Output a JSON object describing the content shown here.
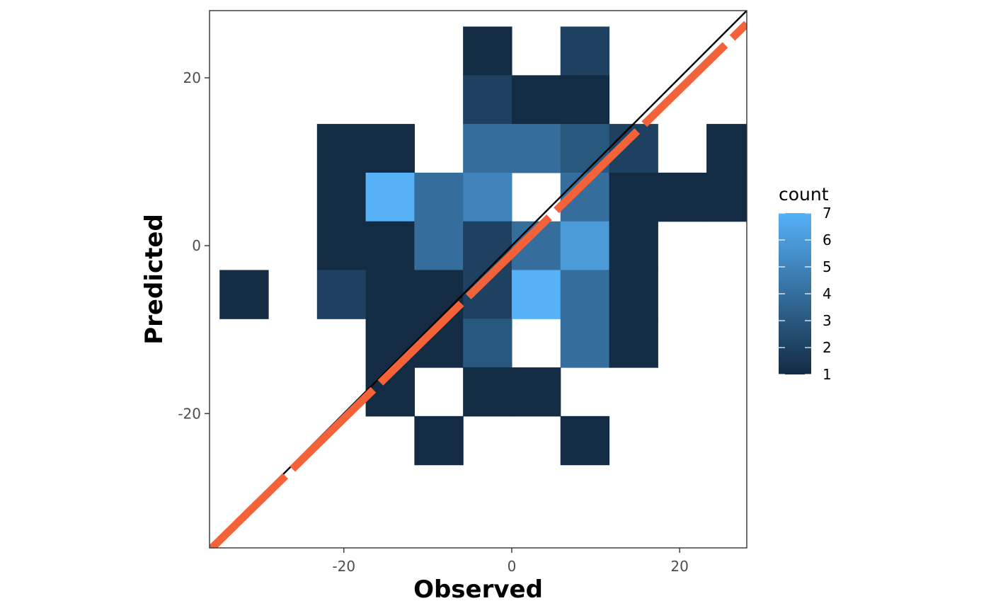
{
  "chart_data": {
    "type": "heatmap",
    "title": "",
    "xlabel": "Observed",
    "ylabel": "Predicted",
    "xlim": [
      -36,
      28
    ],
    "ylim": [
      -36,
      28
    ],
    "bin_width": 5.8,
    "x_ticks": [
      -20,
      0,
      20
    ],
    "x_tick_labels": [
      "-20",
      "0",
      "20"
    ],
    "y_ticks": [
      -20,
      0,
      20
    ],
    "y_tick_labels": [
      "-20",
      "0",
      "20"
    ],
    "grid": false,
    "legend": {
      "title": "count",
      "position": "right",
      "min": 1,
      "max": 7,
      "breaks": [
        1,
        2,
        3,
        4,
        5,
        6,
        7
      ],
      "break_labels": [
        "1",
        "2",
        "3",
        "4",
        "5",
        "6",
        "7"
      ],
      "low_color": "#132B43",
      "high_color": "#56B1F7"
    },
    "lines": [
      {
        "kind": "identity",
        "slope": 1,
        "intercept": 0,
        "color": "#000000",
        "style": "solid"
      },
      {
        "kind": "fit",
        "slope": 0.98,
        "intercept": -1.0,
        "color": "#F4623A",
        "style": "dashed"
      }
    ],
    "cells": [
      {
        "x": -2.9,
        "y": 23.2,
        "count": 1
      },
      {
        "x": 8.7,
        "y": 23.2,
        "count": 2
      },
      {
        "x": -2.9,
        "y": 17.4,
        "count": 2
      },
      {
        "x": 2.9,
        "y": 17.4,
        "count": 1
      },
      {
        "x": 8.7,
        "y": 17.4,
        "count": 1
      },
      {
        "x": -20.3,
        "y": 11.6,
        "count": 1
      },
      {
        "x": -14.5,
        "y": 11.6,
        "count": 1
      },
      {
        "x": -2.9,
        "y": 11.6,
        "count": 4
      },
      {
        "x": 2.9,
        "y": 11.6,
        "count": 4
      },
      {
        "x": 8.7,
        "y": 11.6,
        "count": 3
      },
      {
        "x": 14.5,
        "y": 11.6,
        "count": 2
      },
      {
        "x": 26.1,
        "y": 11.6,
        "count": 1
      },
      {
        "x": -20.3,
        "y": 5.8,
        "count": 1
      },
      {
        "x": -14.5,
        "y": 5.8,
        "count": 7
      },
      {
        "x": -8.7,
        "y": 5.8,
        "count": 4
      },
      {
        "x": -2.9,
        "y": 5.8,
        "count": 5
      },
      {
        "x": 8.7,
        "y": 5.8,
        "count": 4
      },
      {
        "x": 14.5,
        "y": 5.8,
        "count": 1
      },
      {
        "x": 20.3,
        "y": 5.8,
        "count": 1
      },
      {
        "x": 26.1,
        "y": 5.8,
        "count": 1
      },
      {
        "x": -20.3,
        "y": 0,
        "count": 1
      },
      {
        "x": -14.5,
        "y": 0,
        "count": 1
      },
      {
        "x": -8.7,
        "y": 0,
        "count": 4
      },
      {
        "x": -2.9,
        "y": 0,
        "count": 2
      },
      {
        "x": 2.9,
        "y": 0,
        "count": 4
      },
      {
        "x": 8.7,
        "y": 0,
        "count": 6
      },
      {
        "x": 14.5,
        "y": 0,
        "count": 1
      },
      {
        "x": -31.9,
        "y": -5.8,
        "count": 1
      },
      {
        "x": -20.3,
        "y": -5.8,
        "count": 2
      },
      {
        "x": -14.5,
        "y": -5.8,
        "count": 1
      },
      {
        "x": -8.7,
        "y": -5.8,
        "count": 1
      },
      {
        "x": -2.9,
        "y": -5.8,
        "count": 2
      },
      {
        "x": 2.9,
        "y": -5.8,
        "count": 7
      },
      {
        "x": 8.7,
        "y": -5.8,
        "count": 4
      },
      {
        "x": 14.5,
        "y": -5.8,
        "count": 1
      },
      {
        "x": -14.5,
        "y": -11.6,
        "count": 1
      },
      {
        "x": -8.7,
        "y": -11.6,
        "count": 1
      },
      {
        "x": -2.9,
        "y": -11.6,
        "count": 3
      },
      {
        "x": 8.7,
        "y": -11.6,
        "count": 4
      },
      {
        "x": 14.5,
        "y": -11.6,
        "count": 1
      },
      {
        "x": -14.5,
        "y": -17.4,
        "count": 1
      },
      {
        "x": -2.9,
        "y": -17.4,
        "count": 1
      },
      {
        "x": 2.9,
        "y": -17.4,
        "count": 1
      },
      {
        "x": -8.7,
        "y": -23.2,
        "count": 1
      },
      {
        "x": 8.7,
        "y": -23.2,
        "count": 1
      }
    ]
  }
}
